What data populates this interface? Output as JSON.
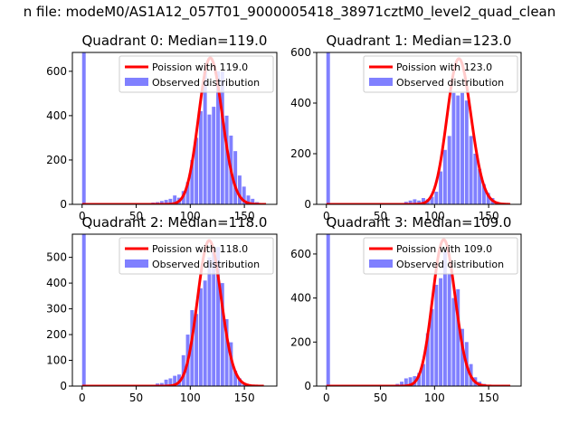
{
  "suptitle": "n file: modeM0/AS1A12_057T01_9000005418_38971cztM0_level2_quad_clean",
  "colors": {
    "fit": "#ff0000",
    "hist": "#8080ff",
    "axis": "#000000",
    "legend_border": "#cccccc"
  },
  "chart_data": [
    {
      "type": "bar",
      "title": "Quadrant 0: Median=119.0",
      "legend": [
        "Poission with 119.0",
        "Observed distribution"
      ],
      "legend_position": "top-right",
      "grid": false,
      "xlim": [
        -9,
        180
      ],
      "ylim": [
        0,
        685
      ],
      "xticks": [
        0,
        50,
        100,
        150
      ],
      "yticks": [
        0,
        200,
        400,
        600
      ],
      "bin_width": 3.3,
      "hist": {
        "x": [
          0,
          60,
          64,
          68,
          72,
          76,
          80,
          84,
          88,
          92,
          96,
          100,
          104,
          108,
          112,
          116,
          120,
          124,
          128,
          132,
          136,
          140,
          144,
          148,
          152,
          156,
          160
        ],
        "values": [
          685,
          5,
          8,
          10,
          15,
          20,
          25,
          40,
          30,
          60,
          100,
          200,
          300,
          420,
          600,
          405,
          440,
          600,
          600,
          400,
          310,
          240,
          130,
          80,
          40,
          25,
          10
        ]
      },
      "fit": {
        "mean": 119,
        "peak": 660,
        "xmin": 0,
        "xmax": 170
      }
    },
    {
      "type": "bar",
      "title": "Quadrant 1: Median=123.0",
      "legend": [
        "Poission with 123.0",
        "Observed distribution"
      ],
      "legend_position": "top-right",
      "grid": false,
      "xlim": [
        -9,
        180
      ],
      "ylim": [
        0,
        600
      ],
      "xticks": [
        0,
        50,
        100,
        150
      ],
      "yticks": [
        0,
        200,
        400,
        600
      ],
      "bin_width": 3.3,
      "hist": {
        "x": [
          0,
          72,
          76,
          80,
          84,
          88,
          92,
          96,
          100,
          104,
          108,
          112,
          116,
          120,
          124,
          128,
          132,
          136,
          140,
          144,
          148,
          152,
          156
        ],
        "values": [
          600,
          10,
          15,
          20,
          15,
          25,
          20,
          30,
          50,
          130,
          215,
          270,
          440,
          430,
          440,
          410,
          270,
          200,
          140,
          80,
          45,
          25,
          10
        ]
      },
      "fit": {
        "mean": 123,
        "peak": 575,
        "xmin": 0,
        "xmax": 170
      }
    },
    {
      "type": "bar",
      "title": "Quadrant 2: Median=118.0",
      "legend": [
        "Poission with 118.0",
        "Observed distribution"
      ],
      "legend_position": "top-right",
      "grid": false,
      "xlim": [
        -9,
        180
      ],
      "ylim": [
        0,
        590
      ],
      "xticks": [
        0,
        50,
        100,
        150
      ],
      "yticks": [
        0,
        100,
        200,
        300,
        400,
        500
      ],
      "bin_width": 3.3,
      "hist": {
        "x": [
          0,
          68,
          72,
          76,
          80,
          84,
          88,
          92,
          96,
          100,
          104,
          108,
          112,
          116,
          120,
          124,
          128,
          132,
          136,
          140,
          144,
          148
        ],
        "values": [
          590,
          10,
          12,
          25,
          30,
          40,
          45,
          120,
          200,
          295,
          280,
          380,
          410,
          500,
          520,
          540,
          400,
          260,
          170,
          60,
          30,
          10
        ]
      },
      "fit": {
        "mean": 118,
        "peak": 565,
        "xmin": 0,
        "xmax": 168
      }
    },
    {
      "type": "bar",
      "title": "Quadrant 3: Median=109.0",
      "legend": [
        "Poission with 109.0",
        "Observed distribution"
      ],
      "legend_position": "top-right",
      "grid": false,
      "xlim": [
        -9,
        180
      ],
      "ylim": [
        0,
        690
      ],
      "xticks": [
        0,
        50,
        100,
        150
      ],
      "yticks": [
        0,
        200,
        400,
        600
      ],
      "bin_width": 3.3,
      "hist": {
        "x": [
          0,
          64,
          68,
          72,
          76,
          80,
          84,
          88,
          92,
          96,
          100,
          104,
          108,
          112,
          116,
          120,
          124,
          128,
          132,
          136,
          140,
          144,
          148
        ],
        "values": [
          690,
          10,
          20,
          35,
          40,
          45,
          60,
          100,
          240,
          350,
          460,
          490,
          610,
          510,
          400,
          440,
          260,
          200,
          100,
          40,
          20,
          10,
          5
        ]
      },
      "fit": {
        "mean": 109,
        "peak": 665,
        "xmin": 0,
        "xmax": 170
      }
    }
  ]
}
